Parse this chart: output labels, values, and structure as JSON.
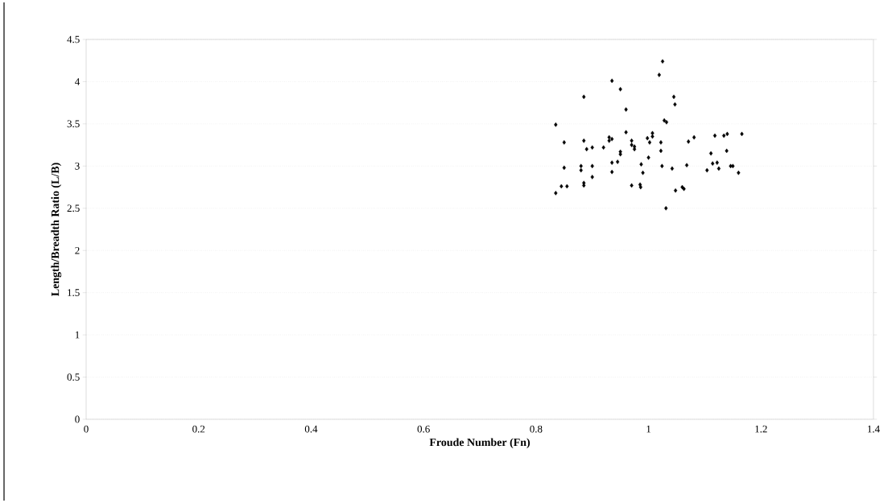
{
  "chart_data": {
    "type": "scatter",
    "xlabel": "Froude Number (Fn)",
    "ylabel": "Length/Breadth Ratio (L/B)",
    "x": [
      1.025,
      1.019,
      1.045,
      1.047,
      1.028,
      1.032,
      1.007,
      0.998,
      1.007,
      1.002,
      1.022,
      1.022,
      1.0,
      0.987,
      0.99,
      0.986,
      1.024,
      1.042,
      1.068,
      1.048,
      1.06,
      1.063,
      1.031,
      1.071,
      1.081,
      1.118,
      1.134,
      1.14,
      1.166,
      1.111,
      1.139,
      1.114,
      1.122,
      1.104,
      1.125,
      1.146,
      1.15,
      1.16,
      0.835,
      0.835,
      0.845,
      0.85,
      0.85,
      0.855,
      0.88,
      0.88,
      0.885,
      0.885,
      0.885,
      0.885,
      0.89,
      0.9,
      0.9,
      0.9,
      0.92,
      0.93,
      0.93,
      0.935,
      0.935,
      0.935,
      0.935,
      0.945,
      0.95,
      0.95,
      0.95,
      0.96,
      0.96,
      0.97,
      0.97,
      0.97,
      0.975,
      0.975,
      0.985
    ],
    "values": [
      4.24,
      4.08,
      3.82,
      3.73,
      3.54,
      3.52,
      3.39,
      3.33,
      3.35,
      3.28,
      3.28,
      3.18,
      3.1,
      3.02,
      2.92,
      2.75,
      3.0,
      2.97,
      3.01,
      2.71,
      2.75,
      2.73,
      2.5,
      3.29,
      3.34,
      3.36,
      3.36,
      3.38,
      3.38,
      3.15,
      3.18,
      3.03,
      3.04,
      2.95,
      2.97,
      3.0,
      3.0,
      2.92,
      3.49,
      2.68,
      2.76,
      2.98,
      3.28,
      2.76,
      3.0,
      2.95,
      3.3,
      3.82,
      2.8,
      2.77,
      3.2,
      3.0,
      2.87,
      3.22,
      3.22,
      3.3,
      3.34,
      4.01,
      3.32,
      3.04,
      2.93,
      3.05,
      3.91,
      3.17,
      3.14,
      3.4,
      3.67,
      3.3,
      3.25,
      2.77,
      3.2,
      3.23,
      2.78
    ],
    "color": "#000000",
    "marker": "diamond",
    "grid": "y",
    "xlim": [
      0,
      1.4
    ],
    "ylim": [
      0,
      4.5
    ],
    "xticks": [
      0,
      {
        "value": 0.2,
        "label": "0.2"
      },
      {
        "value": 0.4,
        "label": "0.4"
      },
      {
        "value": 0.6,
        "label": "0.6"
      },
      {
        "value": 0.8,
        "label": "0.8"
      },
      1,
      {
        "value": 1.2,
        "label": "1.2"
      },
      {
        "value": 1.4,
        "label": "1.4"
      }
    ],
    "yticks": [
      0,
      {
        "value": 0.5,
        "label": "0.5"
      },
      1,
      {
        "value": 1.5,
        "label": "1.5"
      },
      2,
      {
        "value": 2.5,
        "label": "2.5"
      },
      3,
      {
        "value": 3.5,
        "label": "3.5"
      },
      4,
      {
        "value": 4.5,
        "label": "4.5"
      }
    ]
  }
}
